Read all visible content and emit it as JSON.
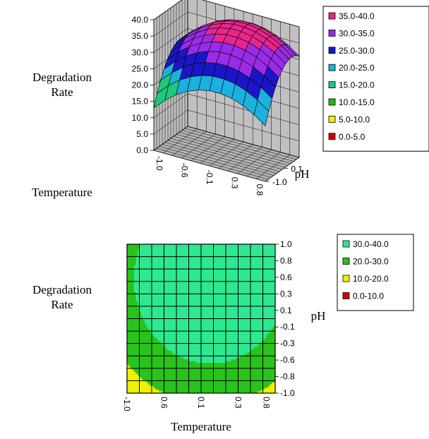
{
  "chart_data": [
    {
      "type": "surface",
      "zlabel": "Degradation Rate",
      "xlabel": "Temperature",
      "ylabel": "pH",
      "x_ticks": [
        "-1.0",
        "-0.6",
        "-0.1",
        "0.3",
        "0.8"
      ],
      "y_ticks": [
        "0.1",
        "-1.0"
      ],
      "z_ticks": [
        "0.0",
        "5.0",
        "10.0",
        "15.0",
        "20.0",
        "25.0",
        "30.0",
        "35.0",
        "40.0"
      ],
      "zlim": [
        0,
        40
      ],
      "grid": true,
      "legend_position": "right",
      "legend": [
        {
          "label": "35.0-40.0",
          "color": "#e8258c"
        },
        {
          "label": "30.0-35.0",
          "color": "#9a2be8"
        },
        {
          "label": "25.0-30.0",
          "color": "#1a16c8"
        },
        {
          "label": "20.0-25.0",
          "color": "#1ab0e0"
        },
        {
          "label": "15.0-20.0",
          "color": "#20c87a"
        },
        {
          "label": "10.0-15.0",
          "color": "#22b814"
        },
        {
          "label": "5.0-10.0",
          "color": "#f0f000"
        },
        {
          "label": "0.0-5.0",
          "color": "#d40000"
        }
      ],
      "surface": {
        "x": [
          -1.0,
          -0.8,
          -0.6,
          -0.4,
          -0.2,
          0.0,
          0.2,
          0.4,
          0.6,
          0.8,
          1.0
        ],
        "y": [
          -1.0,
          -0.8,
          -0.6,
          -0.4,
          -0.2,
          0.0,
          0.2,
          0.4,
          0.6,
          0.8,
          1.0
        ],
        "model": {
          "intercept": 36.5,
          "bx": 2.0,
          "by": 7.0,
          "bxx": -8.0,
          "byy": -6.5,
          "bxy": 0
        }
      }
    },
    {
      "type": "contour",
      "zlabel": "Degradation Rate",
      "xlabel": "Temperature",
      "ylabel": "pH",
      "x_ticks": [
        "-1.0",
        "0.6",
        "0.1",
        "0.3",
        "0.8"
      ],
      "y_ticks": [
        "1.0",
        "0.8",
        "0.6",
        "0.3",
        "0.1",
        "-0.1",
        "-0.3",
        "-0.6",
        "-0.8",
        "-1.0"
      ],
      "grid": true,
      "legend_position": "right",
      "legend": [
        {
          "label": "30.0-40.0",
          "color": "#2ee890"
        },
        {
          "label": "20.0-30.0",
          "color": "#2ac21c"
        },
        {
          "label": "10.0-20.0",
          "color": "#f0f000"
        },
        {
          "label": "0.0-10.0",
          "color": "#d40000"
        }
      ],
      "model": {
        "intercept": 36.5,
        "bx": 2.0,
        "by": 7.0,
        "bxx": -8.0,
        "byy": -6.5,
        "bxy": 0
      }
    }
  ]
}
